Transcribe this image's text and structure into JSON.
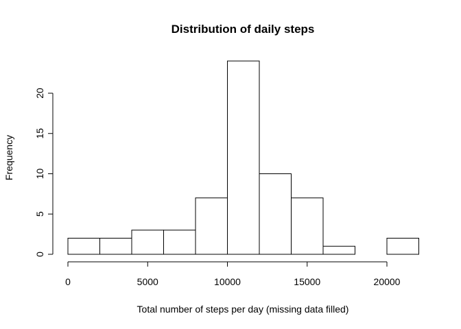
{
  "chart_data": {
    "type": "bar",
    "title": "Distribution of daily steps",
    "xlabel": "Total number of steps per day (missing data filled)",
    "ylabel": "Frequency",
    "bins": [
      {
        "start": 0,
        "end": 2000,
        "count": 2
      },
      {
        "start": 2000,
        "end": 4000,
        "count": 2
      },
      {
        "start": 4000,
        "end": 6000,
        "count": 3
      },
      {
        "start": 6000,
        "end": 8000,
        "count": 3
      },
      {
        "start": 8000,
        "end": 10000,
        "count": 7
      },
      {
        "start": 10000,
        "end": 12000,
        "count": 24
      },
      {
        "start": 12000,
        "end": 14000,
        "count": 10
      },
      {
        "start": 14000,
        "end": 16000,
        "count": 7
      },
      {
        "start": 16000,
        "end": 18000,
        "count": 1
      },
      {
        "start": 18000,
        "end": 20000,
        "count": 0
      },
      {
        "start": 20000,
        "end": 22000,
        "count": 2
      }
    ],
    "xlim": [
      0,
      22000
    ],
    "ylim": [
      0,
      24
    ],
    "x_ticks": [
      0,
      5000,
      10000,
      15000,
      20000
    ],
    "y_ticks": [
      0,
      5,
      10,
      15,
      20
    ],
    "grid": false
  }
}
